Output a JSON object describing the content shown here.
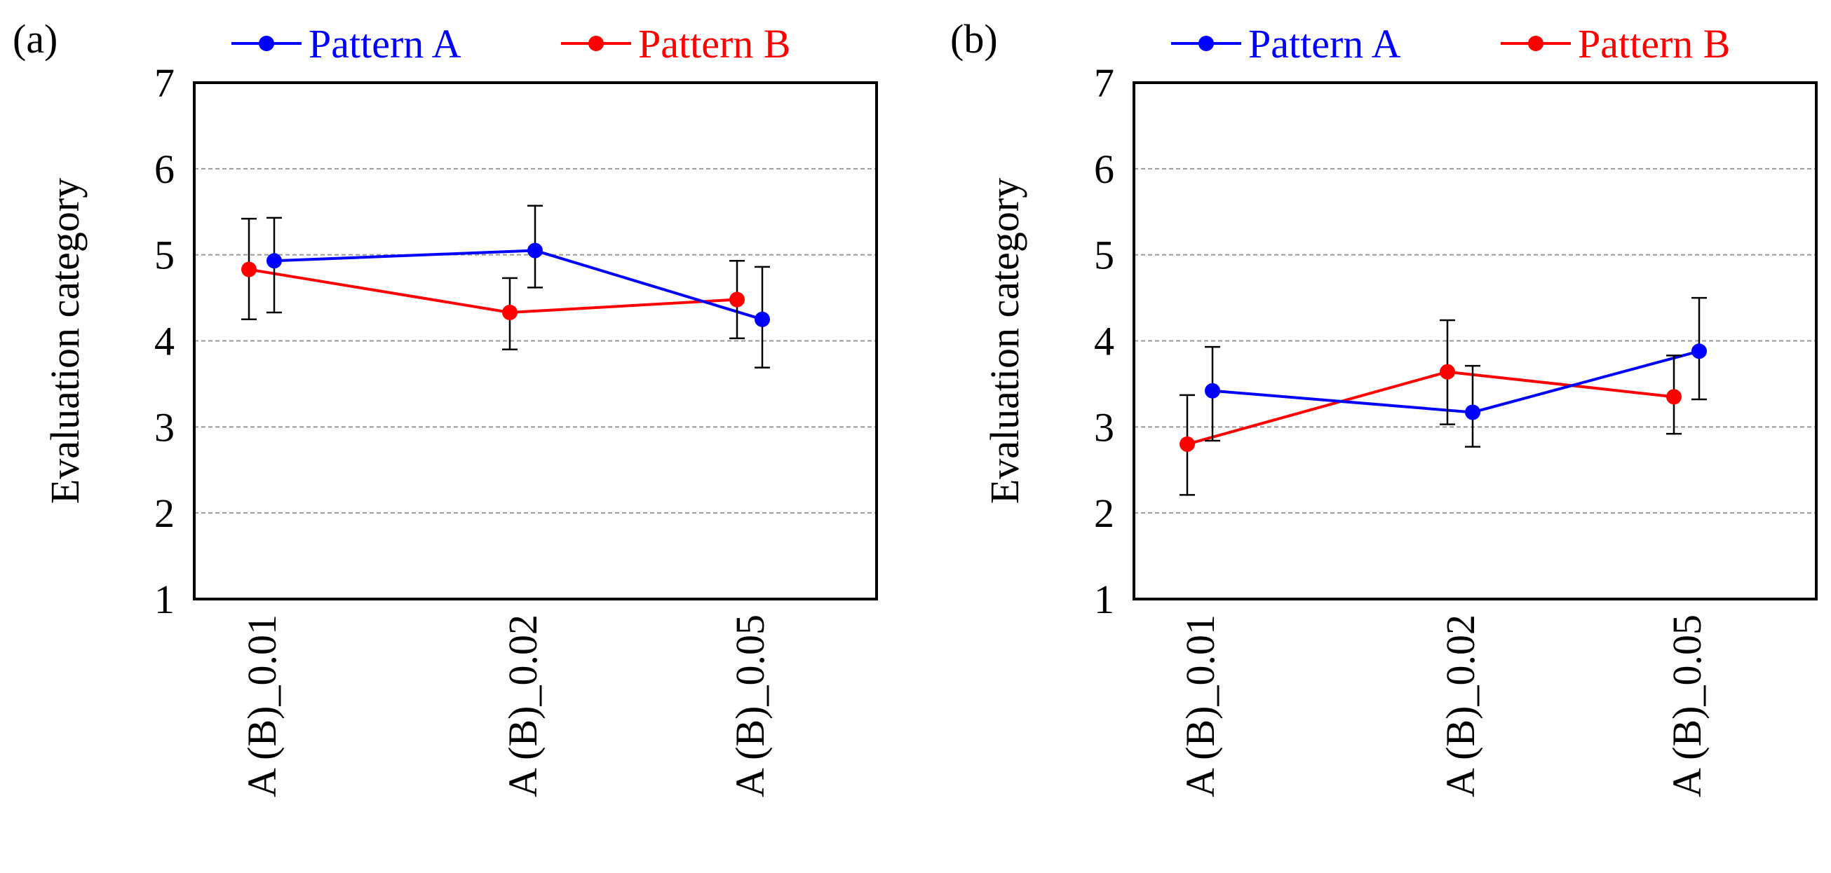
{
  "figure": {
    "panel_labels": [
      "(a)",
      "(b)"
    ]
  },
  "colors": {
    "pattern_a": "#0000ff",
    "pattern_b": "#ff0000",
    "grid": "#999999",
    "errorbar": "#000000"
  },
  "chart_data": [
    {
      "type": "line",
      "panel": "(a)",
      "title": "",
      "xlabel": "",
      "ylabel": "Evaluation category",
      "categories": [
        "A (B)_0.01",
        "A (B)_0.02",
        "A (B)_0.05"
      ],
      "ylim": [
        1,
        7
      ],
      "yticks": [
        1,
        2,
        3,
        4,
        5,
        6,
        7
      ],
      "grid": "horizontal dashed",
      "legend": "top, above plot",
      "series": [
        {
          "name": "Pattern A",
          "color": "#0000ff",
          "values": [
            4.93,
            5.05,
            4.25
          ],
          "err_low": [
            4.33,
            4.62,
            3.69
          ],
          "err_high": [
            5.43,
            5.57,
            4.86
          ]
        },
        {
          "name": "Pattern B",
          "color": "#ff0000",
          "values": [
            4.83,
            4.33,
            4.48
          ],
          "err_low": [
            4.25,
            3.9,
            4.03
          ],
          "err_high": [
            5.42,
            4.73,
            4.93
          ]
        }
      ]
    },
    {
      "type": "line",
      "panel": "(b)",
      "title": "",
      "xlabel": "",
      "ylabel": "Evaluation category",
      "categories": [
        "A (B)_0.01",
        "A (B)_0.02",
        "A (B)_0.05"
      ],
      "ylim": [
        1,
        7
      ],
      "yticks": [
        1,
        2,
        3,
        4,
        5,
        6,
        7
      ],
      "grid": "horizontal dashed",
      "legend": "top, above plot",
      "series": [
        {
          "name": "Pattern A",
          "color": "#0000ff",
          "values": [
            3.42,
            3.17,
            3.88
          ],
          "err_low": [
            2.84,
            2.77,
            3.32
          ],
          "err_high": [
            3.93,
            3.71,
            4.5
          ]
        },
        {
          "name": "Pattern B",
          "color": "#ff0000",
          "values": [
            2.8,
            3.64,
            3.35
          ],
          "err_low": [
            2.21,
            3.03,
            2.92
          ],
          "err_high": [
            3.37,
            4.24,
            3.83
          ]
        }
      ]
    }
  ]
}
